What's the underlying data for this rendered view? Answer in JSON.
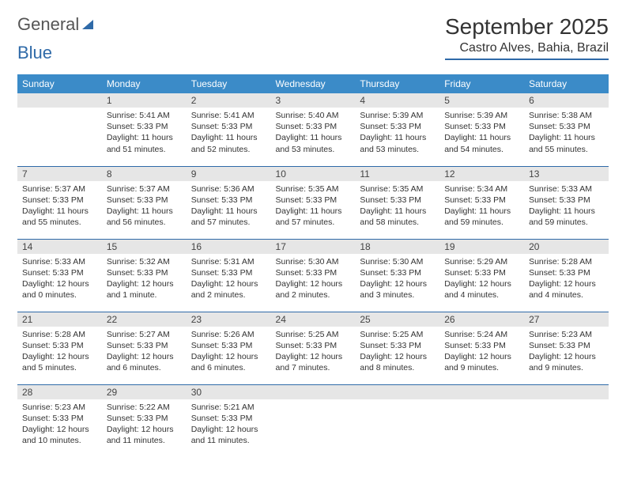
{
  "logo": {
    "part1": "General",
    "part2": "Blue"
  },
  "header": {
    "month": "September 2025",
    "location": "Castro Alves, Bahia, Brazil"
  },
  "weekdays": [
    "Sunday",
    "Monday",
    "Tuesday",
    "Wednesday",
    "Thursday",
    "Friday",
    "Saturday"
  ],
  "colors": {
    "header_bar": "#3b8bc8",
    "accent": "#2f6aa8",
    "daynum_bg": "#e6e6e6",
    "text": "#333333",
    "bg": "#ffffff"
  },
  "weeks": [
    [
      null,
      {
        "n": "1",
        "sr": "Sunrise: 5:41 AM",
        "ss": "Sunset: 5:33 PM",
        "dl": "Daylight: 11 hours and 51 minutes."
      },
      {
        "n": "2",
        "sr": "Sunrise: 5:41 AM",
        "ss": "Sunset: 5:33 PM",
        "dl": "Daylight: 11 hours and 52 minutes."
      },
      {
        "n": "3",
        "sr": "Sunrise: 5:40 AM",
        "ss": "Sunset: 5:33 PM",
        "dl": "Daylight: 11 hours and 53 minutes."
      },
      {
        "n": "4",
        "sr": "Sunrise: 5:39 AM",
        "ss": "Sunset: 5:33 PM",
        "dl": "Daylight: 11 hours and 53 minutes."
      },
      {
        "n": "5",
        "sr": "Sunrise: 5:39 AM",
        "ss": "Sunset: 5:33 PM",
        "dl": "Daylight: 11 hours and 54 minutes."
      },
      {
        "n": "6",
        "sr": "Sunrise: 5:38 AM",
        "ss": "Sunset: 5:33 PM",
        "dl": "Daylight: 11 hours and 55 minutes."
      }
    ],
    [
      {
        "n": "7",
        "sr": "Sunrise: 5:37 AM",
        "ss": "Sunset: 5:33 PM",
        "dl": "Daylight: 11 hours and 55 minutes."
      },
      {
        "n": "8",
        "sr": "Sunrise: 5:37 AM",
        "ss": "Sunset: 5:33 PM",
        "dl": "Daylight: 11 hours and 56 minutes."
      },
      {
        "n": "9",
        "sr": "Sunrise: 5:36 AM",
        "ss": "Sunset: 5:33 PM",
        "dl": "Daylight: 11 hours and 57 minutes."
      },
      {
        "n": "10",
        "sr": "Sunrise: 5:35 AM",
        "ss": "Sunset: 5:33 PM",
        "dl": "Daylight: 11 hours and 57 minutes."
      },
      {
        "n": "11",
        "sr": "Sunrise: 5:35 AM",
        "ss": "Sunset: 5:33 PM",
        "dl": "Daylight: 11 hours and 58 minutes."
      },
      {
        "n": "12",
        "sr": "Sunrise: 5:34 AM",
        "ss": "Sunset: 5:33 PM",
        "dl": "Daylight: 11 hours and 59 minutes."
      },
      {
        "n": "13",
        "sr": "Sunrise: 5:33 AM",
        "ss": "Sunset: 5:33 PM",
        "dl": "Daylight: 11 hours and 59 minutes."
      }
    ],
    [
      {
        "n": "14",
        "sr": "Sunrise: 5:33 AM",
        "ss": "Sunset: 5:33 PM",
        "dl": "Daylight: 12 hours and 0 minutes."
      },
      {
        "n": "15",
        "sr": "Sunrise: 5:32 AM",
        "ss": "Sunset: 5:33 PM",
        "dl": "Daylight: 12 hours and 1 minute."
      },
      {
        "n": "16",
        "sr": "Sunrise: 5:31 AM",
        "ss": "Sunset: 5:33 PM",
        "dl": "Daylight: 12 hours and 2 minutes."
      },
      {
        "n": "17",
        "sr": "Sunrise: 5:30 AM",
        "ss": "Sunset: 5:33 PM",
        "dl": "Daylight: 12 hours and 2 minutes."
      },
      {
        "n": "18",
        "sr": "Sunrise: 5:30 AM",
        "ss": "Sunset: 5:33 PM",
        "dl": "Daylight: 12 hours and 3 minutes."
      },
      {
        "n": "19",
        "sr": "Sunrise: 5:29 AM",
        "ss": "Sunset: 5:33 PM",
        "dl": "Daylight: 12 hours and 4 minutes."
      },
      {
        "n": "20",
        "sr": "Sunrise: 5:28 AM",
        "ss": "Sunset: 5:33 PM",
        "dl": "Daylight: 12 hours and 4 minutes."
      }
    ],
    [
      {
        "n": "21",
        "sr": "Sunrise: 5:28 AM",
        "ss": "Sunset: 5:33 PM",
        "dl": "Daylight: 12 hours and 5 minutes."
      },
      {
        "n": "22",
        "sr": "Sunrise: 5:27 AM",
        "ss": "Sunset: 5:33 PM",
        "dl": "Daylight: 12 hours and 6 minutes."
      },
      {
        "n": "23",
        "sr": "Sunrise: 5:26 AM",
        "ss": "Sunset: 5:33 PM",
        "dl": "Daylight: 12 hours and 6 minutes."
      },
      {
        "n": "24",
        "sr": "Sunrise: 5:25 AM",
        "ss": "Sunset: 5:33 PM",
        "dl": "Daylight: 12 hours and 7 minutes."
      },
      {
        "n": "25",
        "sr": "Sunrise: 5:25 AM",
        "ss": "Sunset: 5:33 PM",
        "dl": "Daylight: 12 hours and 8 minutes."
      },
      {
        "n": "26",
        "sr": "Sunrise: 5:24 AM",
        "ss": "Sunset: 5:33 PM",
        "dl": "Daylight: 12 hours and 9 minutes."
      },
      {
        "n": "27",
        "sr": "Sunrise: 5:23 AM",
        "ss": "Sunset: 5:33 PM",
        "dl": "Daylight: 12 hours and 9 minutes."
      }
    ],
    [
      {
        "n": "28",
        "sr": "Sunrise: 5:23 AM",
        "ss": "Sunset: 5:33 PM",
        "dl": "Daylight: 12 hours and 10 minutes."
      },
      {
        "n": "29",
        "sr": "Sunrise: 5:22 AM",
        "ss": "Sunset: 5:33 PM",
        "dl": "Daylight: 12 hours and 11 minutes."
      },
      {
        "n": "30",
        "sr": "Sunrise: 5:21 AM",
        "ss": "Sunset: 5:33 PM",
        "dl": "Daylight: 12 hours and 11 minutes."
      },
      null,
      null,
      null,
      null
    ]
  ]
}
